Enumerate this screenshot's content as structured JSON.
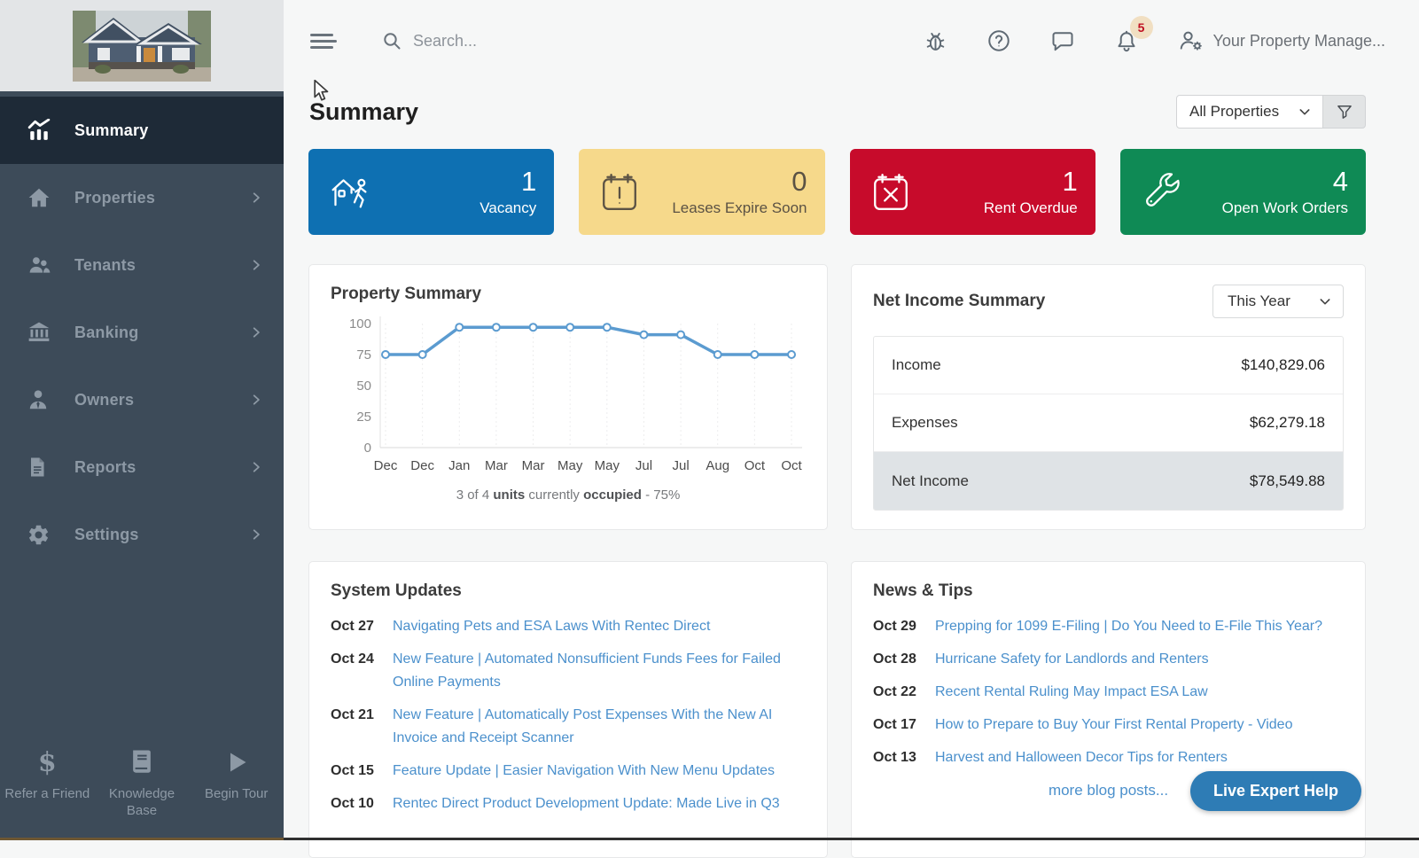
{
  "topbar": {
    "search_placeholder": "Search...",
    "notification_count": "5",
    "user_label": "Your Property Manage...",
    "icons": [
      "hamburger-icon",
      "search-icon",
      "bug-icon",
      "help-icon",
      "chat-icon",
      "bell-icon",
      "user-settings-icon"
    ]
  },
  "page": {
    "title": "Summary",
    "property_filter": "All Properties",
    "filter_icon": "funnel-icon"
  },
  "sidebar": {
    "items": [
      {
        "label": "Summary",
        "icon": "summary-chart-icon",
        "active": true
      },
      {
        "label": "Properties",
        "icon": "home-icon"
      },
      {
        "label": "Tenants",
        "icon": "people-icon"
      },
      {
        "label": "Banking",
        "icon": "bank-icon"
      },
      {
        "label": "Owners",
        "icon": "business-person-icon"
      },
      {
        "label": "Reports",
        "icon": "document-icon"
      },
      {
        "label": "Settings",
        "icon": "gear-icon"
      }
    ],
    "footer_items": [
      {
        "label": "Refer a Friend",
        "icon": "dollar-icon"
      },
      {
        "label": "Knowledge Base",
        "icon": "book-icon"
      },
      {
        "label": "Begin Tour",
        "icon": "play-icon"
      }
    ]
  },
  "stat_cards": [
    {
      "value": "1",
      "label": "Vacancy",
      "color": "#0e70b2",
      "text_color": "#ffffff",
      "icon": "vacancy-house-icon"
    },
    {
      "value": "0",
      "label": "Leases Expire Soon",
      "color": "#f6d98b",
      "text_color": "#5b5244",
      "icon": "calendar-alert-icon"
    },
    {
      "value": "1",
      "label": "Rent Overdue",
      "color": "#c70b2b",
      "text_color": "#ffffff",
      "icon": "calendar-x-icon"
    },
    {
      "value": "4",
      "label": "Open Work Orders",
      "color": "#0f8a55",
      "text_color": "#ffffff",
      "icon": "wrench-icon"
    }
  ],
  "property_summary": {
    "title": "Property Summary",
    "caption": {
      "prefix": "3 of 4 ",
      "bold1": "units",
      "mid": " currently ",
      "bold2": "occupied",
      "suffix": " - 75%"
    }
  },
  "chart_data": {
    "type": "line",
    "title": "Property Summary",
    "categories": [
      "Dec",
      "Dec",
      "Jan",
      "Mar",
      "Mar",
      "May",
      "May",
      "Jul",
      "Jul",
      "Aug",
      "Oct",
      "Oct"
    ],
    "values": [
      75,
      75,
      97,
      97,
      97,
      97,
      97,
      91,
      91,
      75,
      75,
      75
    ],
    "xlabel": "",
    "ylabel": "",
    "ylim": [
      0,
      100
    ],
    "yticks": [
      0,
      25,
      50,
      75,
      100
    ],
    "line_color": "#5b9bd0",
    "grid": "vertical-dotted",
    "legend": "none",
    "caption": "3 of 4 units currently occupied - 75%"
  },
  "net_income": {
    "title": "Net Income Summary",
    "period_filter": "This Year",
    "rows": [
      {
        "label": "Income",
        "value": "$140,829.06"
      },
      {
        "label": "Expenses",
        "value": "$62,279.18"
      },
      {
        "label": "Net Income",
        "value": "$78,549.88"
      }
    ]
  },
  "system_updates": {
    "title": "System Updates",
    "items": [
      {
        "date": "Oct 27",
        "title": "Navigating Pets and ESA Laws With Rentec Direct"
      },
      {
        "date": "Oct 24",
        "title": "New Feature | Automated Nonsufficient Funds Fees for Failed Online Payments"
      },
      {
        "date": "Oct 21",
        "title": "New Feature | Automatically Post Expenses With the New AI Invoice and Receipt Scanner"
      },
      {
        "date": "Oct 15",
        "title": "Feature Update | Easier Navigation With New Menu Updates"
      },
      {
        "date": "Oct 10",
        "title": "Rentec Direct Product Development Update: Made Live in Q3"
      }
    ]
  },
  "news_tips": {
    "title": "News & Tips",
    "items": [
      {
        "date": "Oct 29",
        "title": "Prepping for 1099 E-Filing | Do You Need to E-File This Year?"
      },
      {
        "date": "Oct 28",
        "title": "Hurricane Safety for Landlords and Renters"
      },
      {
        "date": "Oct 22",
        "title": "Recent Rental Ruling May Impact ESA Law"
      },
      {
        "date": "Oct 17",
        "title": "How to Prepare to Buy Your First Rental Property - Video"
      },
      {
        "date": "Oct 13",
        "title": "Harvest and Halloween Decor Tips for Renters"
      }
    ],
    "more_link": "more blog posts..."
  },
  "help_button": {
    "label": "Live Expert Help",
    "color": "#2e7cb5"
  }
}
